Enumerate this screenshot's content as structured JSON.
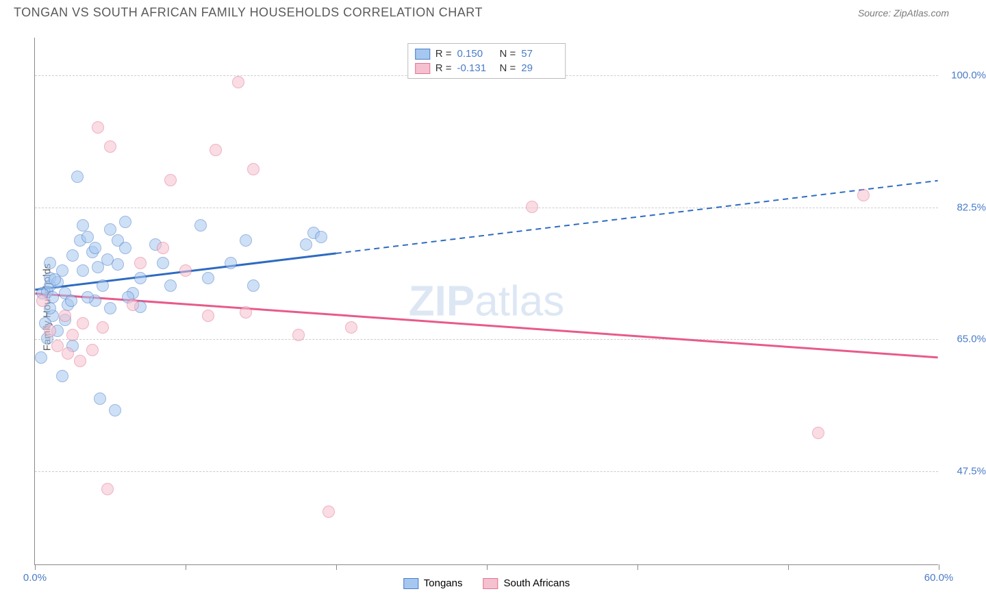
{
  "title": "TONGAN VS SOUTH AFRICAN FAMILY HOUSEHOLDS CORRELATION CHART",
  "source": "Source: ZipAtlas.com",
  "ylabel": "Family Households",
  "watermark_bold": "ZIP",
  "watermark_light": "atlas",
  "chart": {
    "type": "scatter",
    "xlim": [
      0,
      60
    ],
    "ylim": [
      35,
      105
    ],
    "background_color": "#ffffff",
    "grid_color": "#cccccc",
    "grid_dash": "4,4",
    "axis_color": "#888888",
    "yticks": [
      47.5,
      65.0,
      82.5,
      100.0
    ],
    "ytick_labels": [
      "47.5%",
      "65.0%",
      "82.5%",
      "100.0%"
    ],
    "xtick_positions": [
      0,
      10,
      20,
      30,
      40,
      50,
      60
    ],
    "xtick_label_start": "0.0%",
    "xtick_label_end": "60.0%",
    "point_radius": 9,
    "point_opacity": 0.55,
    "point_border_width": 1.5
  },
  "series": [
    {
      "name": "Tongans",
      "fill_color": "#a6c8f0",
      "border_color": "#4a7bc8",
      "line_color": "#2e6bc0",
      "line_width": 3,
      "trend": {
        "y_start": 71.5,
        "y_end": 86.0,
        "solid_until_x": 20
      },
      "R_label": "R =",
      "R_value": "0.150",
      "N_label": "N =",
      "N_value": "57",
      "points": [
        [
          0.5,
          71.0
        ],
        [
          0.8,
          71.2
        ],
        [
          1.0,
          72.0
        ],
        [
          1.2,
          70.5
        ],
        [
          1.0,
          73.0
        ],
        [
          0.4,
          62.5
        ],
        [
          1.5,
          72.5
        ],
        [
          1.8,
          74.0
        ],
        [
          2.0,
          71.0
        ],
        [
          2.2,
          69.5
        ],
        [
          2.4,
          70.0
        ],
        [
          1.0,
          75.0
        ],
        [
          2.5,
          76.0
        ],
        [
          3.0,
          78.0
        ],
        [
          3.2,
          80.0
        ],
        [
          3.5,
          78.5
        ],
        [
          3.8,
          76.5
        ],
        [
          2.8,
          86.5
        ],
        [
          4.0,
          77.0
        ],
        [
          4.2,
          74.5
        ],
        [
          4.5,
          72.0
        ],
        [
          5.0,
          69.0
        ],
        [
          5.0,
          79.5
        ],
        [
          5.5,
          78.0
        ],
        [
          6.0,
          80.5
        ],
        [
          6.0,
          77.0
        ],
        [
          6.5,
          71.0
        ],
        [
          7.0,
          73.0
        ],
        [
          4.0,
          70.0
        ],
        [
          1.2,
          68.0
        ],
        [
          0.8,
          65.0
        ],
        [
          1.5,
          66.0
        ],
        [
          2.0,
          67.5
        ],
        [
          2.5,
          64.0
        ],
        [
          1.8,
          60.0
        ],
        [
          3.2,
          74.0
        ],
        [
          4.3,
          57.0
        ],
        [
          5.3,
          55.5
        ],
        [
          3.5,
          70.5
        ],
        [
          4.8,
          75.5
        ],
        [
          5.5,
          74.8
        ],
        [
          6.2,
          70.5
        ],
        [
          7.0,
          69.2
        ],
        [
          8.0,
          77.5
        ],
        [
          8.5,
          75.0
        ],
        [
          9.0,
          72.0
        ],
        [
          11.0,
          80.0
        ],
        [
          11.5,
          73.0
        ],
        [
          13.0,
          75.0
        ],
        [
          14.0,
          78.0
        ],
        [
          14.5,
          72.0
        ],
        [
          18.5,
          79.0
        ],
        [
          19.0,
          78.5
        ],
        [
          18.0,
          77.5
        ],
        [
          1.0,
          69.0
        ],
        [
          0.7,
          67.0
        ],
        [
          1.3,
          72.8
        ]
      ]
    },
    {
      "name": "South Africans",
      "fill_color": "#f5c0cf",
      "border_color": "#e2738f",
      "line_color": "#e85a8a",
      "line_width": 3,
      "trend": {
        "y_start": 71.0,
        "y_end": 62.5,
        "solid_until_x": 60
      },
      "R_label": "R =",
      "R_value": "-0.131",
      "N_label": "N =",
      "N_value": "29",
      "points": [
        [
          0.5,
          70.0
        ],
        [
          1.0,
          66.0
        ],
        [
          1.5,
          64.0
        ],
        [
          2.0,
          68.0
        ],
        [
          2.2,
          63.0
        ],
        [
          2.5,
          65.5
        ],
        [
          3.0,
          62.0
        ],
        [
          3.2,
          67.0
        ],
        [
          3.8,
          63.5
        ],
        [
          4.2,
          93.0
        ],
        [
          4.5,
          66.5
        ],
        [
          4.8,
          45.0
        ],
        [
          5.0,
          90.5
        ],
        [
          6.5,
          69.5
        ],
        [
          7.0,
          75.0
        ],
        [
          8.5,
          77.0
        ],
        [
          9.0,
          86.0
        ],
        [
          10.0,
          74.0
        ],
        [
          11.5,
          68.0
        ],
        [
          12.0,
          90.0
        ],
        [
          13.5,
          99.0
        ],
        [
          14.0,
          68.5
        ],
        [
          14.5,
          87.5
        ],
        [
          17.5,
          65.5
        ],
        [
          21.0,
          66.5
        ],
        [
          19.5,
          42.0
        ],
        [
          33.0,
          82.5
        ],
        [
          52.0,
          52.5
        ],
        [
          55.0,
          84.0
        ]
      ]
    }
  ],
  "legend_bottom": [
    {
      "label": "Tongans",
      "fill": "#a6c8f0",
      "border": "#4a7bc8"
    },
    {
      "label": "South Africans",
      "fill": "#f5c0cf",
      "border": "#e2738f"
    }
  ]
}
